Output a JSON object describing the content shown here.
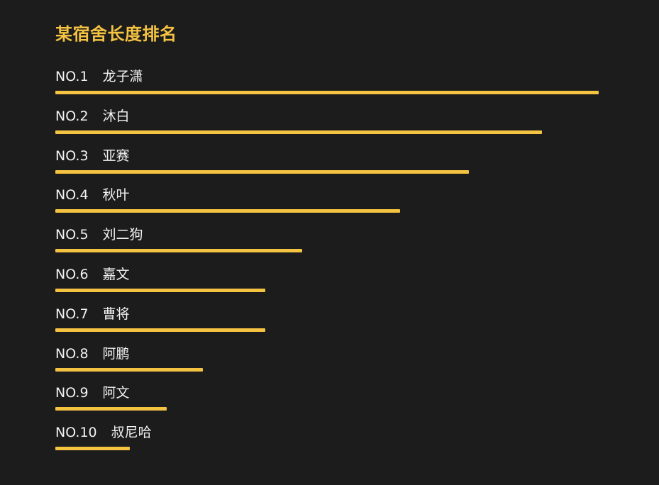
{
  "chart_data": {
    "type": "bar",
    "orientation": "horizontal",
    "title": "某宿舍长度排名",
    "colors": {
      "accent": "#f5c342",
      "label": "#f2f2f2",
      "background": "#1c1c1c"
    },
    "items": [
      {
        "rank": "NO.1",
        "name": "龙子潇",
        "value": 100
      },
      {
        "rank": "NO.2",
        "name": "沐白",
        "value": 89.6
      },
      {
        "rank": "NO.3",
        "name": "亚赛",
        "value": 76.1
      },
      {
        "rank": "NO.4",
        "name": "秋叶",
        "value": 63.5
      },
      {
        "rank": "NO.5",
        "name": "刘二狗",
        "value": 45.4
      },
      {
        "rank": "NO.6",
        "name": "嘉文",
        "value": 38.6
      },
      {
        "rank": "NO.7",
        "name": "曹将",
        "value": 38.6
      },
      {
        "rank": "NO.8",
        "name": "阿鹏",
        "value": 27.2
      },
      {
        "rank": "NO.9",
        "name": "阿文",
        "value": 20.5
      },
      {
        "rank": "NO.10",
        "name": "叔尼哈",
        "value": 13.7
      }
    ]
  }
}
